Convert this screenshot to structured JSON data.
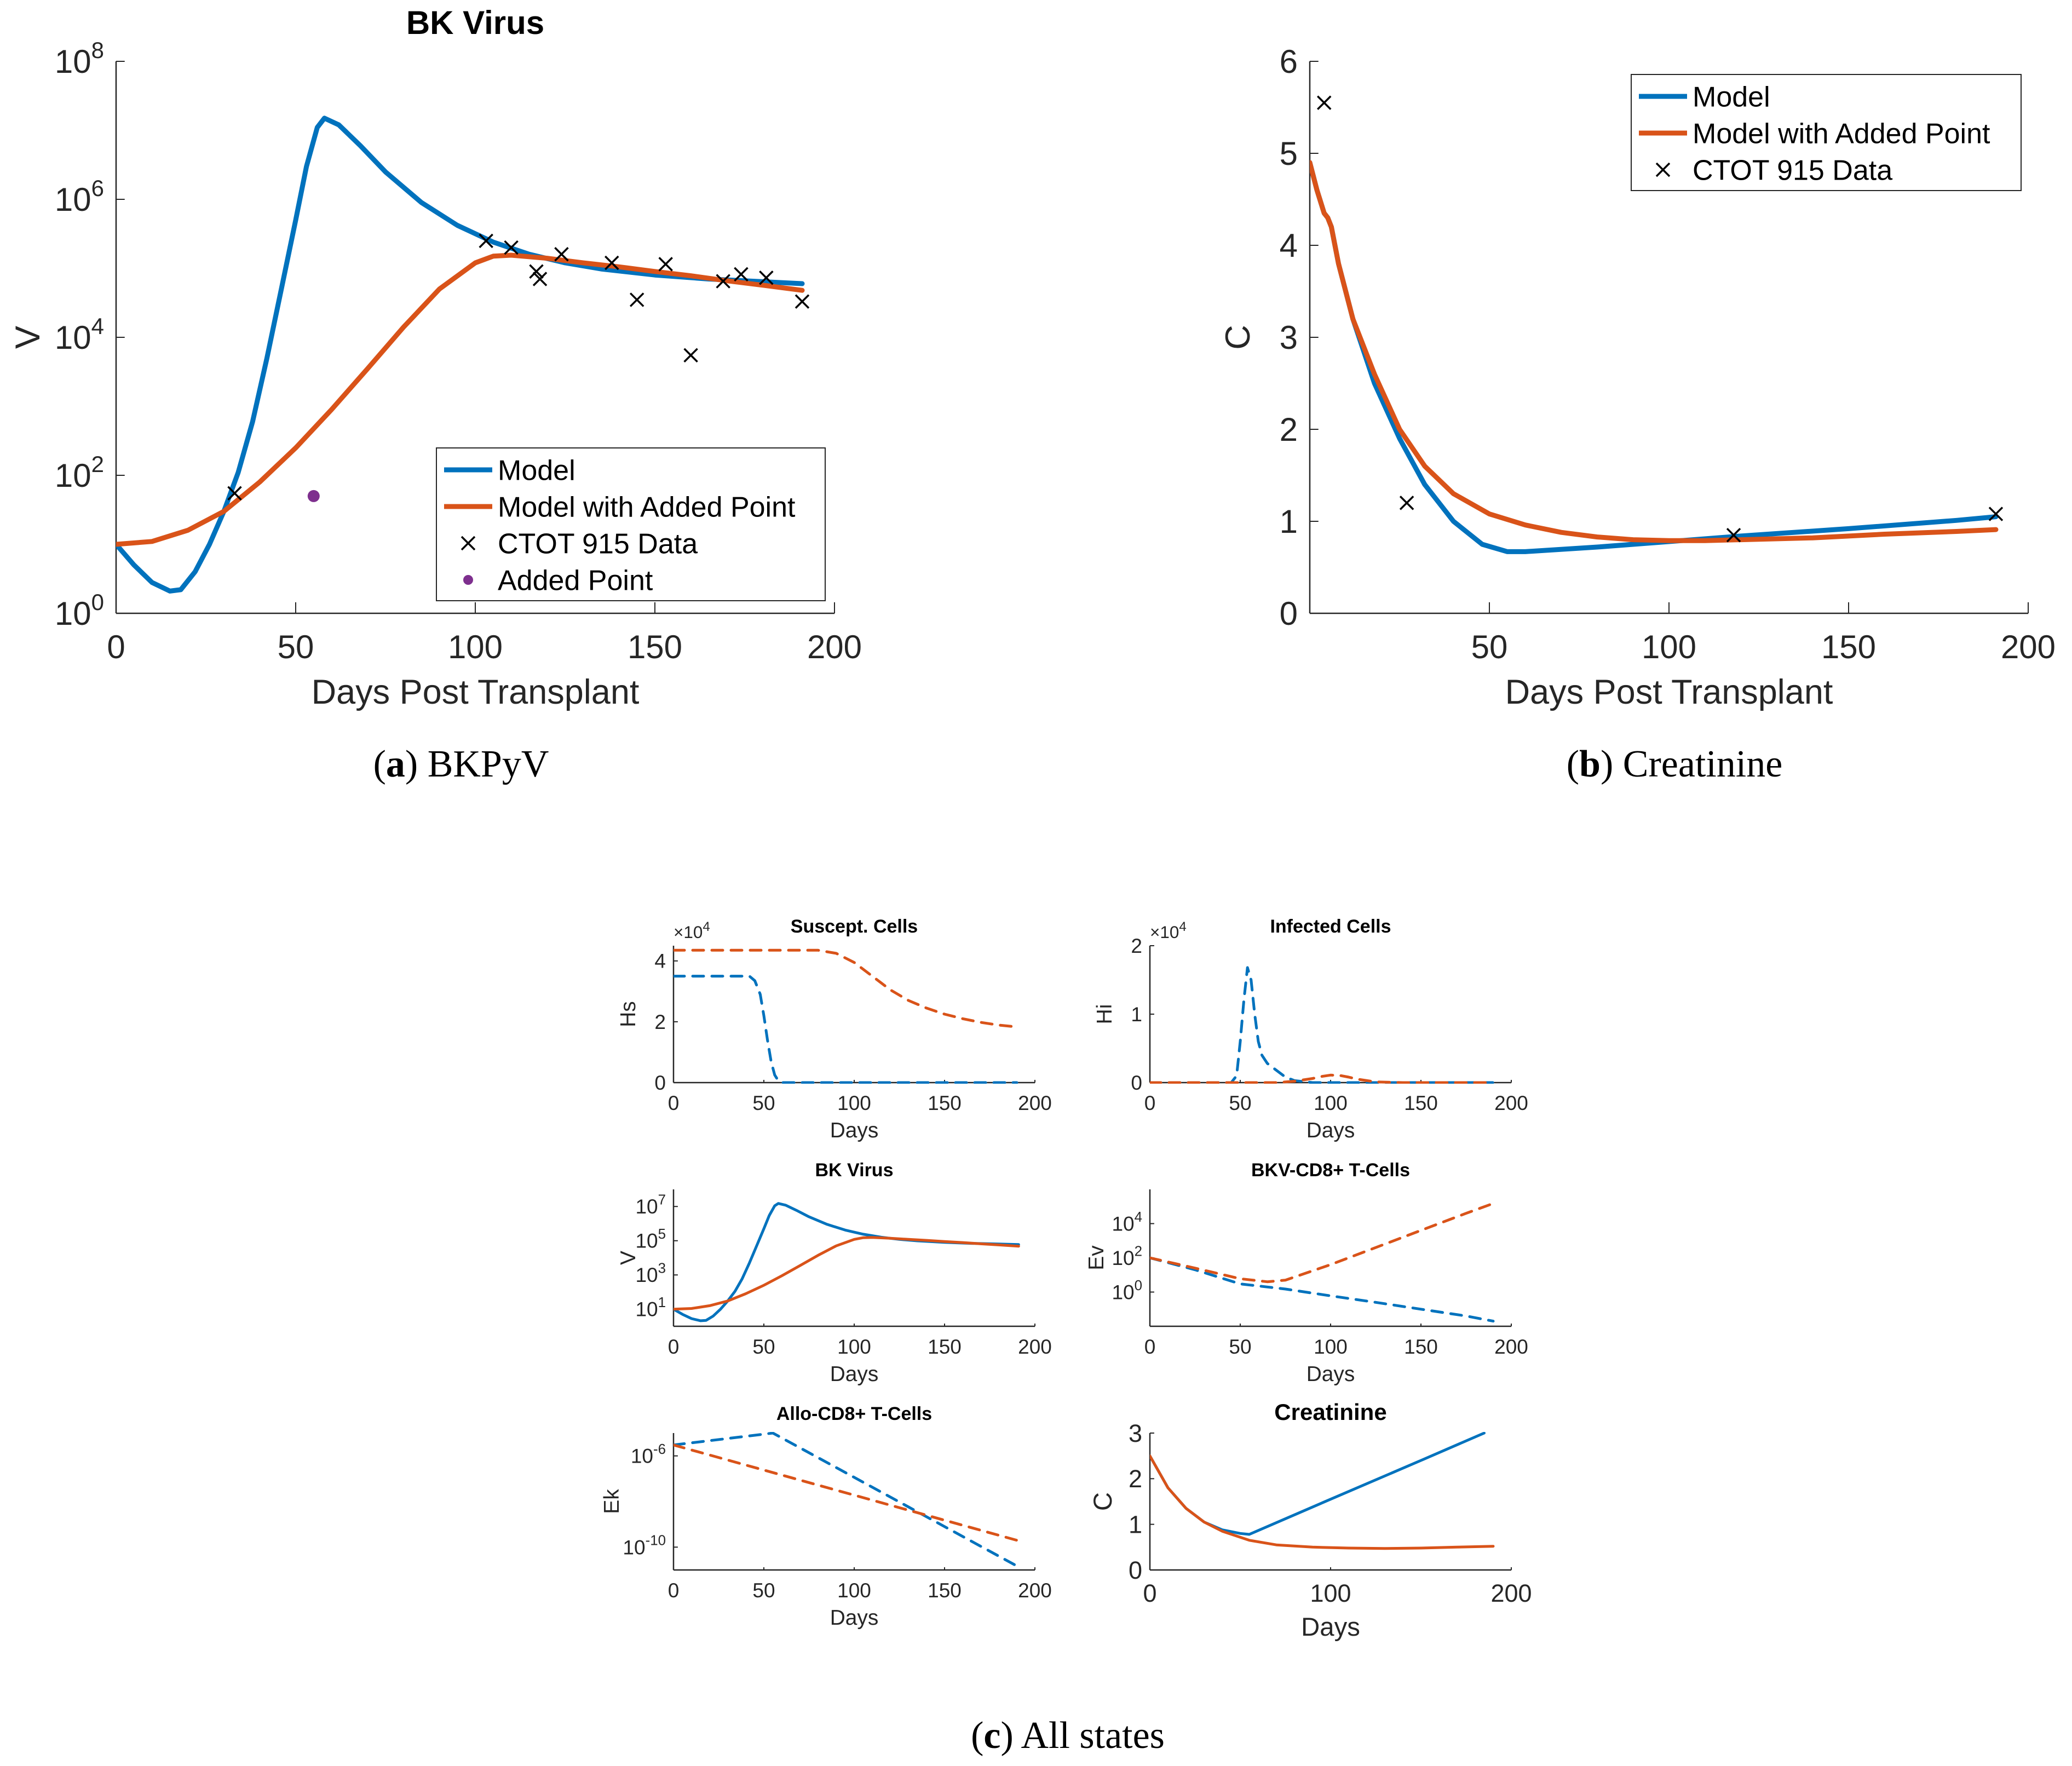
{
  "colors": {
    "model": "#0072BD",
    "model_added": "#D95319",
    "added_point": "#7E2F8E",
    "data": "#000000"
  },
  "captions": {
    "a": {
      "label": "a",
      "text": "BKPyV"
    },
    "b": {
      "label": "b",
      "text": "Creatinine"
    },
    "c": {
      "label": "c",
      "text": "All states"
    }
  },
  "chart_data": [
    {
      "id": "a",
      "type": "line",
      "title": "BK Virus",
      "xlabel": "Days Post Transplant",
      "ylabel": "V",
      "yscale": "log",
      "xlim": [
        0,
        200
      ],
      "ylim": [
        1,
        100000000
      ],
      "xticks": [
        "0",
        "50",
        "100",
        "150",
        "200"
      ],
      "yticks": [
        {
          "base": "10",
          "exp": "0"
        },
        {
          "base": "10",
          "exp": "2"
        },
        {
          "base": "10",
          "exp": "4"
        },
        {
          "base": "10",
          "exp": "6"
        },
        {
          "base": "10",
          "exp": "8"
        }
      ],
      "series": [
        {
          "name": "Model",
          "color": "#0072BD",
          "style": "solid",
          "x": [
            0,
            5,
            10,
            15,
            18,
            22,
            26,
            30,
            34,
            38,
            42,
            46,
            50,
            53,
            56,
            58,
            62,
            68,
            75,
            85,
            95,
            105,
            115,
            125,
            135,
            150,
            165,
            180,
            191
          ],
          "y": [
            10,
            5,
            2.8,
            2.1,
            2.2,
            4,
            10,
            30,
            110,
            600,
            5000,
            50000,
            500000,
            3000000,
            11000000,
            15000000,
            12000000,
            6000000,
            2500000,
            900000,
            420000,
            240000,
            160000,
            120000,
            98000,
            80000,
            70000,
            64000,
            60000
          ]
        },
        {
          "name": "Model with Added Point",
          "color": "#D95319",
          "style": "solid",
          "x": [
            0,
            10,
            20,
            30,
            40,
            50,
            60,
            70,
            80,
            90,
            100,
            105,
            110,
            120,
            130,
            140,
            150,
            160,
            170,
            180,
            191
          ],
          "y": [
            10,
            11,
            16,
            30,
            80,
            250,
            900,
            3500,
            14000,
            50000,
            120000,
            150000,
            155000,
            140000,
            120000,
            105000,
            90000,
            78000,
            66000,
            57000,
            48000
          ]
        },
        {
          "name": "CTOT 915 Data",
          "color": "#000000",
          "style": "x",
          "x": [
            33,
            103,
            110,
            117,
            118,
            124,
            138,
            145,
            153,
            160,
            169,
            174,
            181,
            191
          ],
          "y": [
            55,
            250000,
            200000,
            90000,
            70000,
            160000,
            120000,
            35000,
            115000,
            5500,
            65000,
            82000,
            73000,
            33000
          ]
        },
        {
          "name": "Added Point",
          "color": "#7E2F8E",
          "style": "dot",
          "x": [
            55
          ],
          "y": [
            50
          ]
        }
      ],
      "legend": "bottom-right"
    },
    {
      "id": "b",
      "type": "line",
      "title": "",
      "xlabel": "Days Post Transplant",
      "ylabel": "C",
      "yscale": "linear",
      "xlim": [
        0,
        200
      ],
      "ylim": [
        0,
        6
      ],
      "xticks": [
        "50",
        "100",
        "150",
        "200"
      ],
      "yticks": [
        "0",
        "1",
        "2",
        "3",
        "4",
        "5",
        "6"
      ],
      "series": [
        {
          "name": "Model",
          "color": "#0072BD",
          "style": "solid",
          "x": [
            0,
            2,
            4,
            5,
            6,
            8,
            12,
            18,
            25,
            32,
            40,
            48,
            55,
            60,
            80,
            100,
            120,
            150,
            180,
            191
          ],
          "y": [
            4.9,
            4.6,
            4.35,
            4.3,
            4.2,
            3.8,
            3.2,
            2.5,
            1.9,
            1.4,
            1.0,
            0.75,
            0.67,
            0.67,
            0.72,
            0.78,
            0.84,
            0.92,
            1.01,
            1.05
          ]
        },
        {
          "name": "Model with Added Point",
          "color": "#D95319",
          "style": "solid",
          "x": [
            0,
            2,
            4,
            5,
            6,
            8,
            12,
            18,
            25,
            32,
            40,
            50,
            60,
            70,
            80,
            90,
            100,
            110,
            120,
            140,
            160,
            180,
            191
          ],
          "y": [
            4.9,
            4.6,
            4.35,
            4.3,
            4.2,
            3.8,
            3.2,
            2.6,
            2.0,
            1.6,
            1.3,
            1.08,
            0.96,
            0.88,
            0.83,
            0.8,
            0.79,
            0.79,
            0.8,
            0.82,
            0.86,
            0.89,
            0.91
          ]
        },
        {
          "name": "CTOT 915 Data",
          "color": "#000000",
          "style": "x",
          "x": [
            4,
            27,
            118,
            191
          ],
          "y": [
            5.55,
            1.2,
            0.85,
            1.08
          ]
        }
      ],
      "legend": "top-right"
    },
    {
      "id": "c1",
      "type": "line",
      "title": "Suscept. Cells",
      "xlabel": "Days",
      "ylabel": "Hs",
      "yscale": "linear",
      "xlim": [
        0,
        200
      ],
      "ylim": [
        0,
        45000
      ],
      "exponent_label": {
        "base": "×10",
        "exp": "4"
      },
      "xticks": [
        "0",
        "50",
        "100",
        "150",
        "200"
      ],
      "yticks": [
        "0",
        "2",
        "4"
      ],
      "series": [
        {
          "name": "Model",
          "color": "#0072BD",
          "style": "dashed",
          "x": [
            0,
            42,
            45,
            48,
            50,
            52,
            54,
            56,
            58,
            60,
            100,
            150,
            190
          ],
          "y": [
            35000,
            35000,
            33500,
            29000,
            22000,
            14000,
            7000,
            2500,
            600,
            0,
            0,
            0,
            0
          ]
        },
        {
          "name": "Model with Added Point",
          "color": "#D95319",
          "style": "dashed",
          "x": [
            0,
            80,
            90,
            100,
            110,
            120,
            130,
            140,
            150,
            160,
            170,
            180,
            190
          ],
          "y": [
            43500,
            43500,
            42500,
            39500,
            35000,
            30500,
            27000,
            24500,
            22500,
            21000,
            19800,
            18900,
            18300
          ]
        }
      ]
    },
    {
      "id": "c2",
      "type": "line",
      "title": "Infected Cells",
      "xlabel": "Days",
      "ylabel": "Hi",
      "yscale": "linear",
      "xlim": [
        0,
        200
      ],
      "ylim": [
        0,
        20000
      ],
      "exponent_label": {
        "base": "×10",
        "exp": "4"
      },
      "xticks": [
        "0",
        "50",
        "100",
        "150",
        "200"
      ],
      "yticks": [
        "0",
        "1",
        "2"
      ],
      "series": [
        {
          "name": "Model",
          "color": "#0072BD",
          "style": "dashed",
          "x": [
            0,
            45,
            48,
            50,
            52,
            54,
            56,
            58,
            60,
            62,
            65,
            70,
            75,
            80,
            90,
            190
          ],
          "y": [
            0,
            0,
            1000,
            6000,
            12000,
            16800,
            15000,
            10000,
            6000,
            4000,
            2800,
            1800,
            800,
            300,
            0,
            0
          ]
        },
        {
          "name": "Model with Added Point",
          "color": "#D95319",
          "style": "dashed",
          "x": [
            0,
            70,
            80,
            90,
            95,
            100,
            105,
            110,
            115,
            125,
            140,
            190
          ],
          "y": [
            0,
            0,
            200,
            600,
            900,
            1100,
            1050,
            800,
            500,
            100,
            0,
            0
          ]
        }
      ]
    },
    {
      "id": "c3",
      "type": "line",
      "title": "BK Virus",
      "xlabel": "Days",
      "ylabel": "V",
      "yscale": "log",
      "xlim": [
        0,
        200
      ],
      "ylim": [
        1,
        100000000
      ],
      "xticks": [
        "0",
        "50",
        "100",
        "150",
        "200"
      ],
      "yticks": [
        {
          "base": "10",
          "exp": "1"
        },
        {
          "base": "10",
          "exp": "3"
        },
        {
          "base": "10",
          "exp": "5"
        },
        {
          "base": "10",
          "exp": "7"
        }
      ],
      "series": [
        {
          "name": "Model",
          "color": "#0072BD",
          "style": "solid",
          "x": [
            0,
            5,
            10,
            15,
            18,
            22,
            26,
            30,
            34,
            38,
            42,
            46,
            50,
            53,
            56,
            58,
            62,
            68,
            75,
            85,
            95,
            105,
            115,
            125,
            135,
            150,
            165,
            180,
            191
          ],
          "y": [
            10,
            5,
            2.8,
            2.1,
            2.2,
            4,
            10,
            30,
            110,
            600,
            5000,
            50000,
            500000,
            3000000,
            11000000,
            15000000,
            12000000,
            6000000,
            2500000,
            900000,
            420000,
            240000,
            160000,
            120000,
            98000,
            80000,
            70000,
            64000,
            60000
          ]
        },
        {
          "name": "Model with Added Point",
          "color": "#D95319",
          "style": "solid",
          "x": [
            0,
            10,
            20,
            30,
            40,
            50,
            60,
            70,
            80,
            90,
            100,
            105,
            110,
            120,
            130,
            140,
            150,
            160,
            170,
            180,
            191
          ],
          "y": [
            10,
            11,
            16,
            30,
            80,
            250,
            900,
            3500,
            14000,
            50000,
            120000,
            150000,
            155000,
            140000,
            120000,
            105000,
            90000,
            78000,
            66000,
            57000,
            48000
          ]
        }
      ]
    },
    {
      "id": "c4",
      "type": "line",
      "title": "BKV-CD8+ T-Cells",
      "xlabel": "Days",
      "ylabel": "Ev",
      "yscale": "log",
      "xlim": [
        0,
        200
      ],
      "ylim": [
        0.01,
        1000000
      ],
      "xticks": [
        "0",
        "50",
        "100",
        "150",
        "200"
      ],
      "yticks": [
        {
          "base": "10",
          "exp": "0"
        },
        {
          "base": "10",
          "exp": "2"
        },
        {
          "base": "10",
          "exp": "4"
        }
      ],
      "series": [
        {
          "name": "Model",
          "color": "#0072BD",
          "style": "dashed",
          "x": [
            0,
            25,
            50,
            75,
            100,
            125,
            150,
            175,
            190
          ],
          "y": [
            100,
            20,
            3,
            1.5,
            0.6,
            0.25,
            0.1,
            0.04,
            0.02
          ]
        },
        {
          "name": "Model with Added Point",
          "color": "#D95319",
          "style": "dashed",
          "x": [
            0,
            25,
            50,
            65,
            75,
            100,
            125,
            150,
            175,
            190
          ],
          "y": [
            100,
            25,
            6,
            4,
            5,
            40,
            400,
            4000,
            40000,
            150000
          ]
        }
      ]
    },
    {
      "id": "c5",
      "type": "line",
      "title": "Allo-CD8+ T-Cells",
      "xlabel": "Days",
      "ylabel": "Ek",
      "yscale": "log",
      "xlim": [
        0,
        200
      ],
      "ylim": [
        1e-11,
        1e-05
      ],
      "xticks": [
        "0",
        "50",
        "100",
        "150",
        "200"
      ],
      "yticks": [
        {
          "base": "10",
          "exp": "-10"
        },
        {
          "base": "10",
          "exp": "-6"
        }
      ],
      "series": [
        {
          "name": "Model",
          "color": "#0072BD",
          "style": "dashed",
          "x": [
            0,
            55,
            190
          ],
          "y": [
            3e-06,
            1e-05,
            1.5e-11
          ]
        },
        {
          "name": "Model with Added Point",
          "color": "#D95319",
          "style": "dashed",
          "x": [
            0,
            190
          ],
          "y": [
            3e-06,
            2e-10
          ]
        }
      ]
    },
    {
      "id": "c6",
      "type": "line",
      "title": "Creatinine",
      "xlabel": "Days",
      "ylabel": "C",
      "yscale": "linear",
      "xlim": [
        0,
        200
      ],
      "ylim": [
        0,
        3
      ],
      "xticks": [
        "0",
        "100",
        "200"
      ],
      "yticks": [
        "0",
        "1",
        "2",
        "3"
      ],
      "series": [
        {
          "name": "Model",
          "color": "#0072BD",
          "style": "solid",
          "x": [
            0,
            10,
            20,
            30,
            40,
            50,
            55,
            100,
            150,
            185
          ],
          "y": [
            2.5,
            1.8,
            1.35,
            1.05,
            0.88,
            0.8,
            0.78,
            1.55,
            2.4,
            3.0
          ]
        },
        {
          "name": "Model with Added Point",
          "color": "#D95319",
          "style": "solid",
          "x": [
            0,
            10,
            20,
            30,
            40,
            55,
            70,
            90,
            110,
            130,
            150,
            170,
            190
          ],
          "y": [
            2.5,
            1.8,
            1.35,
            1.05,
            0.85,
            0.65,
            0.55,
            0.5,
            0.48,
            0.47,
            0.48,
            0.5,
            0.52
          ]
        }
      ]
    }
  ]
}
